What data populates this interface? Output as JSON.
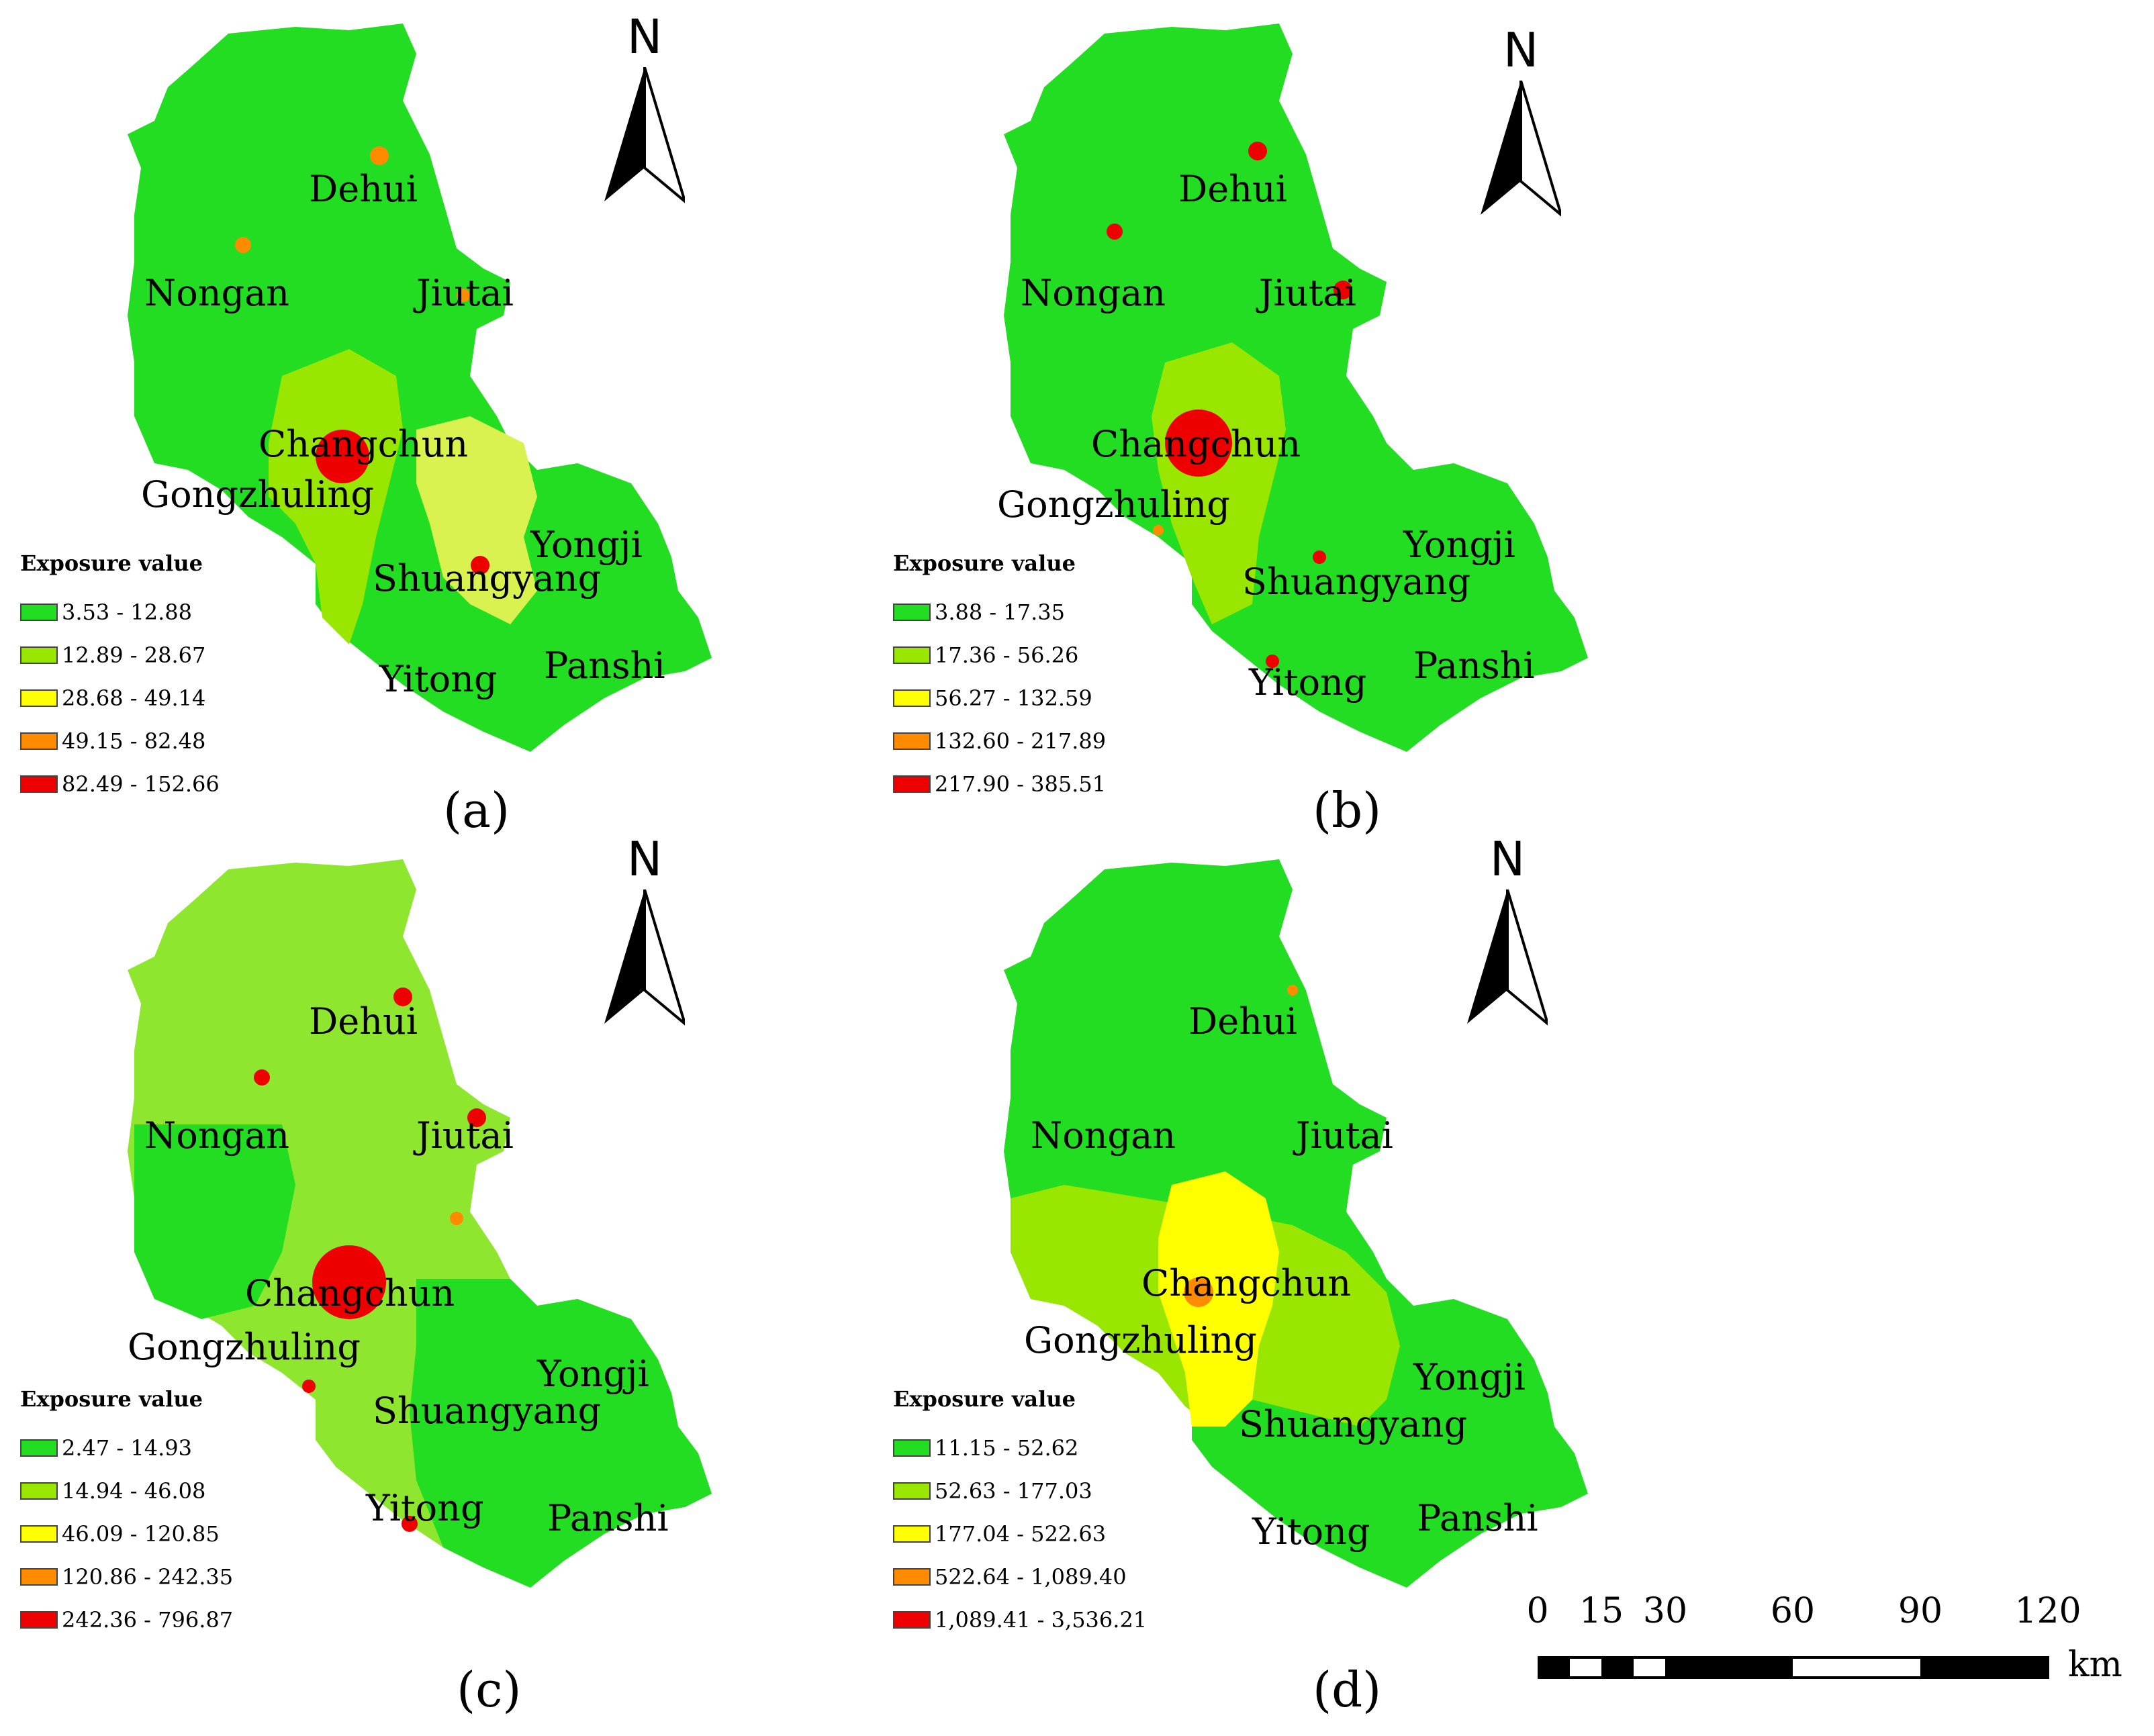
{
  "legend_title": "Exposure value",
  "north_label": "N",
  "colors": {
    "class1": "#22dd22",
    "class2": "#99e600",
    "class3": "#ffff00",
    "class4": "#ff8c00",
    "class5": "#ee0000"
  },
  "panels": [
    {
      "label": "(a)",
      "places": {
        "dehui": "Dehui",
        "nongan": "Nongan",
        "jiutai": "Jiutai",
        "changchun": "Changchun",
        "gongzhuling": "Gongzhuling",
        "yongji": "Yongji",
        "shuangyang": "Shuangyang",
        "yitong": "Yitong",
        "panshi": "Panshi"
      },
      "legend": [
        "3.53 - 12.88",
        "12.89 - 28.67",
        "28.68 - 49.14",
        "49.15 - 82.48",
        "82.49 - 152.66"
      ]
    },
    {
      "label": "(b)",
      "places": {
        "dehui": "Dehui",
        "nongan": "Nongan",
        "jiutai": "Jiutai",
        "changchun": "Changchun",
        "gongzhuling": "Gongzhuling",
        "yongji": "Yongji",
        "shuangyang": "Shuangyang",
        "yitong": "Yitong",
        "panshi": "Panshi"
      },
      "legend": [
        "3.88 - 17.35",
        "17.36 - 56.26",
        "56.27 - 132.59",
        "132.60 - 217.89",
        "217.90 - 385.51"
      ]
    },
    {
      "label": "(c)",
      "places": {
        "dehui": "Dehui",
        "nongan": "Nongan",
        "jiutai": "Jiutai",
        "changchun": "Changchun",
        "gongzhuling": "Gongzhuling",
        "yongji": "Yongji",
        "shuangyang": "Shuangyang",
        "yitong": "Yitong",
        "panshi": "Panshi"
      },
      "legend": [
        "2.47 - 14.93",
        "14.94 - 46.08",
        "46.09 - 120.85",
        "120.86 - 242.35",
        "242.36 - 796.87"
      ]
    },
    {
      "label": "(d)",
      "places": {
        "dehui": "Dehui",
        "nongan": "Nongan",
        "jiutai": "Jiutai",
        "changchun": "Changchun",
        "gongzhuling": "Gongzhuling",
        "yongji": "Yongji",
        "shuangyang": "Shuangyang",
        "yitong": "Yitong",
        "panshi": "Panshi"
      },
      "legend": [
        "11.15 - 52.62",
        "52.63 - 177.03",
        "177.04 - 522.63",
        "522.64 - 1,089.40",
        "1,089.41 - 3,536.21"
      ]
    }
  ],
  "scale_bar": {
    "ticks": [
      "0",
      "15",
      "30",
      "60",
      "90",
      "120"
    ],
    "unit": "km"
  }
}
